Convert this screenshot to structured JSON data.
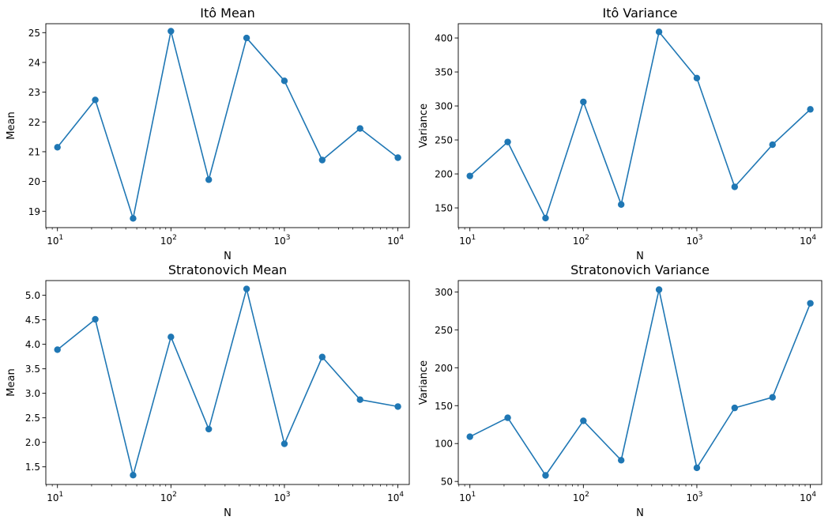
{
  "chart_data": [
    {
      "type": "line",
      "title": "Itô Mean",
      "xlabel": "N",
      "ylabel": "Mean",
      "xscale": "log",
      "x": [
        10,
        21.54,
        46.42,
        100,
        215.4,
        464.2,
        1000,
        2154,
        4642,
        10000
      ],
      "xlim": [
        7.9,
        12600
      ],
      "ylim": [
        18.45,
        25.3
      ],
      "yticks": [
        19,
        20,
        21,
        22,
        23,
        24,
        25
      ],
      "ytick_labels": [
        "19",
        "20",
        "21",
        "22",
        "23",
        "24",
        "25"
      ],
      "xticks": [
        10,
        100,
        1000,
        10000
      ],
      "xtick_bases": [
        "10",
        "10",
        "10",
        "10"
      ],
      "xtick_exps": [
        "1",
        "2",
        "3",
        "4"
      ],
      "series": [
        {
          "values": [
            21.15,
            22.74,
            18.76,
            25.05,
            20.06,
            24.82,
            23.38,
            20.72,
            21.78,
            20.8
          ],
          "color": "#1f77b4",
          "marker": "circle"
        }
      ],
      "grid": false
    },
    {
      "type": "line",
      "title": "Itô Variance",
      "xlabel": "N",
      "ylabel": "Variance",
      "xscale": "log",
      "x": [
        10,
        21.54,
        46.42,
        100,
        215.4,
        464.2,
        1000,
        2154,
        4642,
        10000
      ],
      "xlim": [
        7.9,
        12600
      ],
      "ylim": [
        121,
        421
      ],
      "yticks": [
        150,
        200,
        250,
        300,
        350,
        400
      ],
      "ytick_labels": [
        "150",
        "200",
        "250",
        "300",
        "350",
        "400"
      ],
      "xticks": [
        10,
        100,
        1000,
        10000
      ],
      "xtick_bases": [
        "10",
        "10",
        "10",
        "10"
      ],
      "xtick_exps": [
        "1",
        "2",
        "3",
        "4"
      ],
      "series": [
        {
          "values": [
            197,
            247,
            135,
            306,
            155,
            409,
            341,
            181,
            243,
            295
          ],
          "color": "#1f77b4",
          "marker": "circle"
        }
      ],
      "grid": false
    },
    {
      "type": "line",
      "title": "Stratonovich Mean",
      "xlabel": "N",
      "ylabel": "Mean",
      "xscale": "log",
      "x": [
        10,
        21.54,
        46.42,
        100,
        215.4,
        464.2,
        1000,
        2154,
        4642,
        10000
      ],
      "xlim": [
        7.9,
        12600
      ],
      "ylim": [
        1.14,
        5.3
      ],
      "yticks": [
        1.5,
        2.0,
        2.5,
        3.0,
        3.5,
        4.0,
        4.5,
        5.0
      ],
      "ytick_labels": [
        "1.5",
        "2.0",
        "2.5",
        "3.0",
        "3.5",
        "4.0",
        "4.5",
        "5.0"
      ],
      "xticks": [
        10,
        100,
        1000,
        10000
      ],
      "xtick_bases": [
        "10",
        "10",
        "10",
        "10"
      ],
      "xtick_exps": [
        "1",
        "2",
        "3",
        "4"
      ],
      "series": [
        {
          "values": [
            3.89,
            4.51,
            1.33,
            4.15,
            2.27,
            5.13,
            1.97,
            3.74,
            2.87,
            2.73
          ],
          "color": "#1f77b4",
          "marker": "circle"
        }
      ],
      "grid": false
    },
    {
      "type": "line",
      "title": "Stratonovich Variance",
      "xlabel": "N",
      "ylabel": "Variance",
      "xscale": "log",
      "x": [
        10,
        21.54,
        46.42,
        100,
        215.4,
        464.2,
        1000,
        2154,
        4642,
        10000
      ],
      "xlim": [
        7.9,
        12600
      ],
      "ylim": [
        46,
        315
      ],
      "yticks": [
        50,
        100,
        150,
        200,
        250,
        300
      ],
      "ytick_labels": [
        "50",
        "100",
        "150",
        "200",
        "250",
        "300"
      ],
      "xticks": [
        10,
        100,
        1000,
        10000
      ],
      "xtick_bases": [
        "10",
        "10",
        "10",
        "10"
      ],
      "xtick_exps": [
        "1",
        "2",
        "3",
        "4"
      ],
      "series": [
        {
          "values": [
            109,
            134,
            58,
            130,
            78,
            303,
            68,
            147,
            161,
            285
          ],
          "color": "#1f77b4",
          "marker": "circle"
        }
      ],
      "grid": false
    }
  ]
}
